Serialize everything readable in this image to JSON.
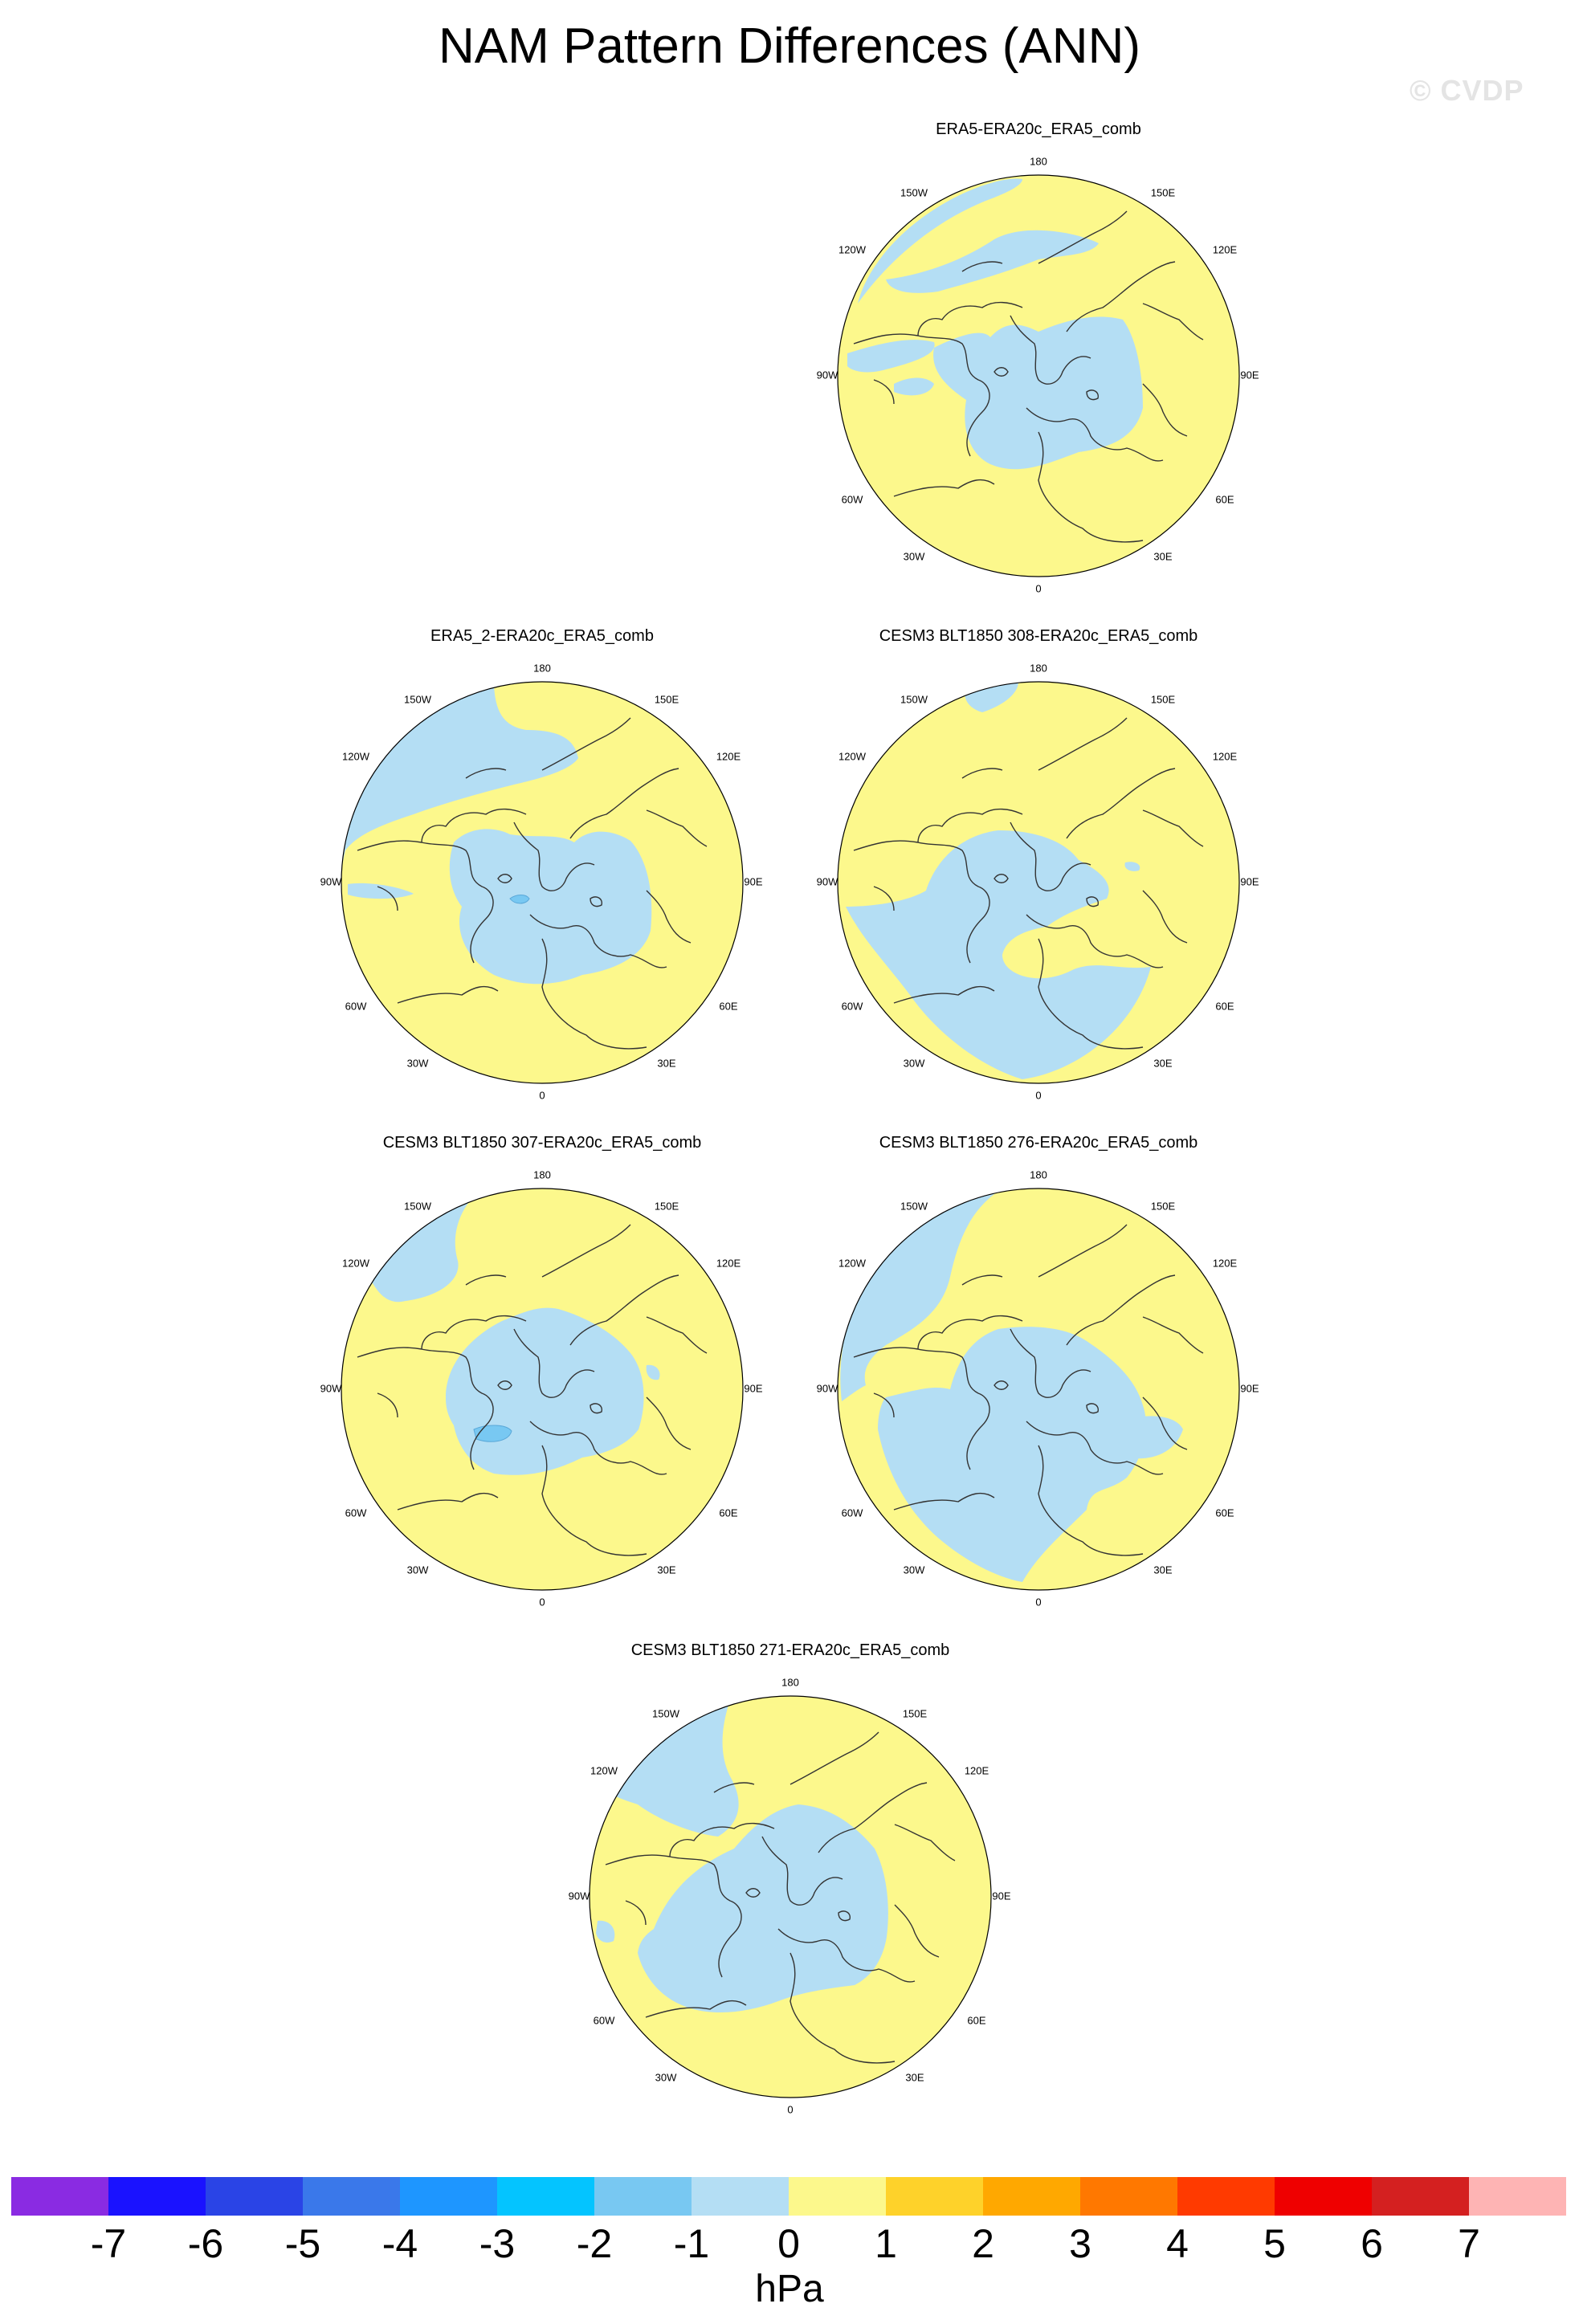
{
  "title": "NAM Pattern Differences (ANN)",
  "watermark": "© CVDP",
  "longitude_labels": [
    "180",
    "150E",
    "120E",
    "90E",
    "60E",
    "30E",
    "0",
    "30W",
    "60W",
    "90W",
    "120W",
    "150W"
  ],
  "panels": [
    {
      "id": "p1",
      "title": "ERA5-ERA20c_ERA5_comb"
    },
    {
      "id": "p2",
      "title": "ERA5_2-ERA20c_ERA5_comb"
    },
    {
      "id": "p3",
      "title": "CESM3 BLT1850 308-ERA20c_ERA5_comb"
    },
    {
      "id": "p4",
      "title": "CESM3 BLT1850 307-ERA20c_ERA5_comb"
    },
    {
      "id": "p5",
      "title": "CESM3 BLT1850 276-ERA20c_ERA5_comb"
    },
    {
      "id": "p6",
      "title": "CESM3 BLT1850 271-ERA20c_ERA5_comb"
    }
  ],
  "colorbar": {
    "labels": [
      "-7",
      "-6",
      "-5",
      "-4",
      "-3",
      "-2",
      "-1",
      "0",
      "1",
      "2",
      "3",
      "4",
      "5",
      "6",
      "7"
    ],
    "colors": [
      "#8a2be2",
      "#1a12ff",
      "#2a44e6",
      "#3a78ea",
      "#1e96ff",
      "#04c4ff",
      "#78c8f2",
      "#b4def4",
      "#fcf88c",
      "#fed22a",
      "#ffa800",
      "#ff7800",
      "#ff3a00",
      "#ef0000",
      "#d42020",
      "#feb4b4"
    ],
    "units": "hPa"
  },
  "colors": {
    "positive": "#fcf88c",
    "negative": "#b4def4",
    "strong_negative": "#78c8f2"
  }
}
